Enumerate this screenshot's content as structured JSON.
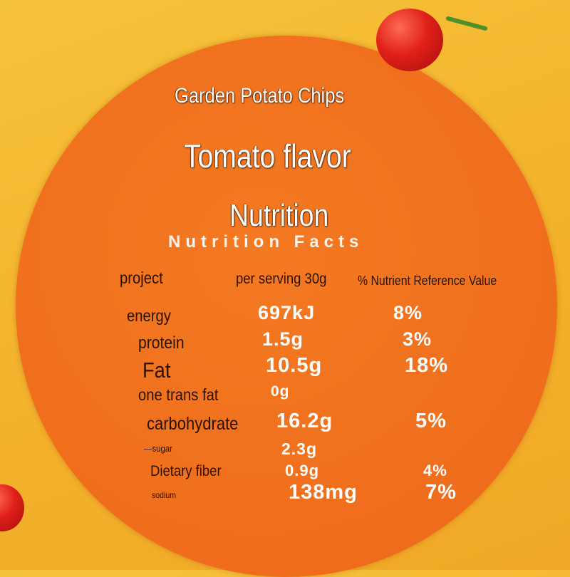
{
  "header": {
    "brand": "Garden Potato Chips",
    "flavor": "Tomato flavor",
    "heading": "Nutrition",
    "subheading": "Nutrition Facts"
  },
  "table": {
    "columns": [
      "project",
      "per serving 30g",
      "% Nutrient Reference Value"
    ],
    "rows": [
      {
        "name": "energy",
        "per_serving": "697kJ",
        "nrv": "8%"
      },
      {
        "name": "protein",
        "per_serving": "1.5g",
        "nrv": "3%"
      },
      {
        "name": "Fat",
        "per_serving": "10.5g",
        "nrv": "18%"
      },
      {
        "name": "one trans fat",
        "per_serving": "0g"
      },
      {
        "name": "carbohydrate",
        "per_serving": "16.2g",
        "nrv": "5%"
      },
      {
        "name": "—sugar",
        "per_serving": "2.3g"
      },
      {
        "name": "Dietary fiber",
        "per_serving": "0.9g",
        "nrv": "4%"
      },
      {
        "name": "sodium",
        "per_serving": "138mg",
        "nrv": "7%"
      }
    ]
  }
}
